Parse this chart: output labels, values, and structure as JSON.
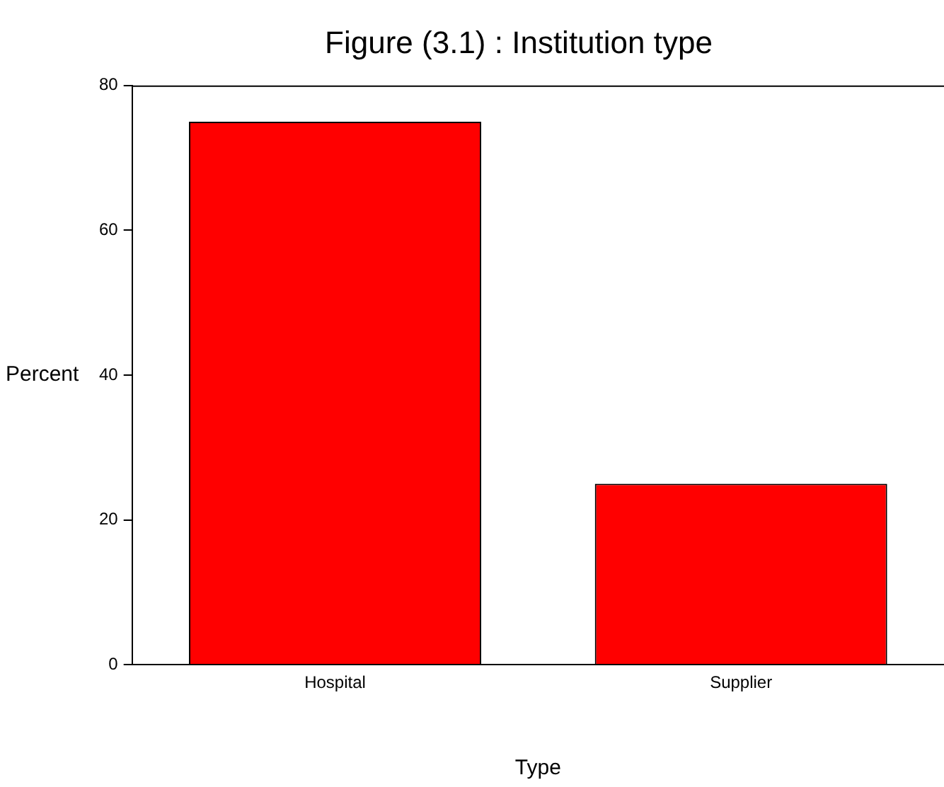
{
  "chart_data": {
    "type": "bar",
    "title": "Figure (3.1) : Institution type",
    "xlabel": "Type",
    "ylabel": "Percent",
    "categories": [
      "Hospital",
      "Supplier"
    ],
    "values": [
      75,
      25
    ],
    "color": "#ff0000",
    "ylim": [
      0,
      80
    ],
    "yticks": [
      0,
      20,
      40,
      60,
      80
    ],
    "grid": false,
    "legend": false
  }
}
